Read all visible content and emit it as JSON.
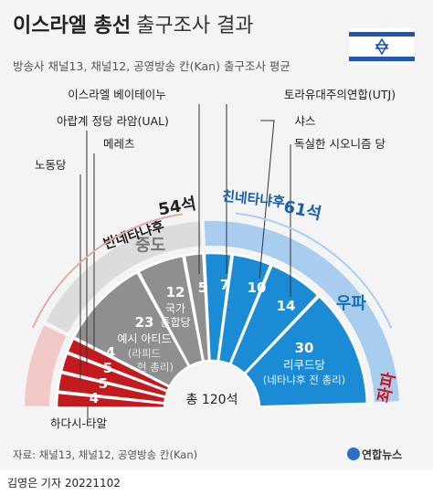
{
  "header": {
    "title_bold": "이스라엘 총선",
    "title_light": "출구조사 결과",
    "subtitle": "방송사 채널13, 채널12, 공영방송 칸(Kan) 출구조사 평균"
  },
  "chart_data": {
    "type": "pie",
    "subtype": "half-donut parliament seat chart",
    "total_label": "총 120석",
    "total": 120,
    "blocs": [
      {
        "name": "좌파",
        "color": "#d01b1e",
        "light_color": "#f2c9c6"
      },
      {
        "name": "중도",
        "color": "#9a9a9a",
        "light_color": "#dcdcdc"
      },
      {
        "name": "우파",
        "color": "#1b8bd6",
        "light_color": "#a9cdef"
      }
    ],
    "parties": [
      {
        "name": "하다시-타알",
        "seats": 4,
        "bloc": "좌파",
        "color": "#c31a1f"
      },
      {
        "name": "노동당",
        "seats": 5,
        "bloc": "좌파",
        "color": "#c31a1f"
      },
      {
        "name": "아랍계 정당 라암(UAL)",
        "seats": 5,
        "bloc": "좌파",
        "color": "#c31a1f"
      },
      {
        "name": "메레츠",
        "seats": 4,
        "bloc": "좌파",
        "color": "#c31a1f"
      },
      {
        "name": "예시 아티드",
        "seats": 23,
        "bloc": "중도",
        "color": "#8f8f8f",
        "note_1": "(라피드",
        "note_2": "현 총리)"
      },
      {
        "name_1": "국가",
        "name_2": "통합당",
        "seats": 12,
        "bloc": "중도",
        "color": "#8f8f8f"
      },
      {
        "name": "이스라엘 베이테이누",
        "seats": 5,
        "bloc": "중도",
        "color": "#8f8f8f"
      },
      {
        "name": "토라유대주의연합(UTJ)",
        "seats": 7,
        "bloc": "우파",
        "color": "#1b8bd6"
      },
      {
        "name": "샤스",
        "seats": 10,
        "bloc": "우파",
        "color": "#1b8bd6"
      },
      {
        "name": "독실한 시오니즘 당",
        "seats": 14,
        "bloc": "우파",
        "color": "#1b8bd6"
      },
      {
        "name": "리쿠드당",
        "seats": 30,
        "bloc": "우파",
        "color": "#1b8bd6",
        "note": "(네타냐후 전 총리)"
      }
    ],
    "coalitions": [
      {
        "label": "반네타냐후",
        "seats_text": "54석",
        "seats": 54,
        "color": "#222222",
        "accent": "#e2aaa6"
      },
      {
        "label": "친네타냐후",
        "seats_text": "61석",
        "seats": 61,
        "color": "#1b5fa8",
        "accent": "#a9cdef"
      }
    ]
  },
  "footer": {
    "source": "자료: 채널13, 채널12, 공영방송 칸(Kan)",
    "logo_text": "연합뉴스",
    "byline": "김영은 기자  20221102"
  }
}
